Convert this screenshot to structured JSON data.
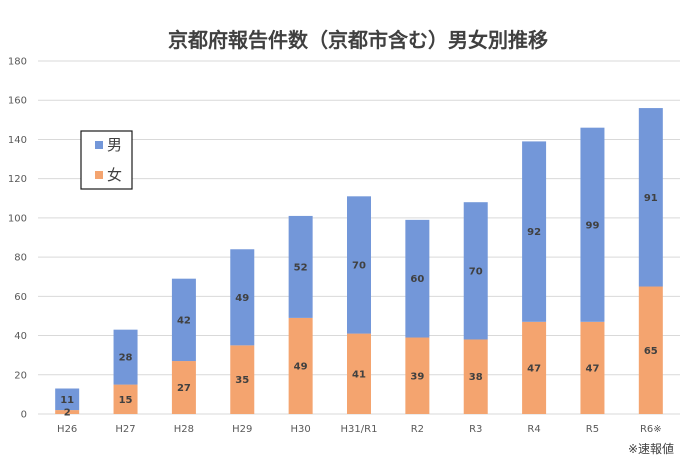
{
  "chart_data": {
    "type": "bar",
    "stacked": true,
    "title": "京都府報告件数（京都市含む）男女別推移",
    "categories": [
      "H26",
      "H27",
      "H28",
      "H29",
      "H30",
      "H31/R1",
      "R2",
      "R3",
      "R4",
      "R5",
      "R6※"
    ],
    "series": [
      {
        "name": "女",
        "color": "#F4A46F",
        "values": [
          2,
          15,
          27,
          35,
          49,
          41,
          39,
          38,
          47,
          47,
          65
        ]
      },
      {
        "name": "男",
        "color": "#7397D9",
        "values": [
          11,
          28,
          42,
          49,
          52,
          70,
          60,
          70,
          92,
          99,
          91
        ]
      }
    ],
    "ylim": [
      0,
      180
    ],
    "yticks": [
      0,
      20,
      40,
      60,
      80,
      100,
      120,
      140,
      160,
      180
    ],
    "grid": true,
    "legend": {
      "position": "top-left",
      "entries": [
        "男",
        "女"
      ]
    },
    "footnote": "※速報値"
  }
}
